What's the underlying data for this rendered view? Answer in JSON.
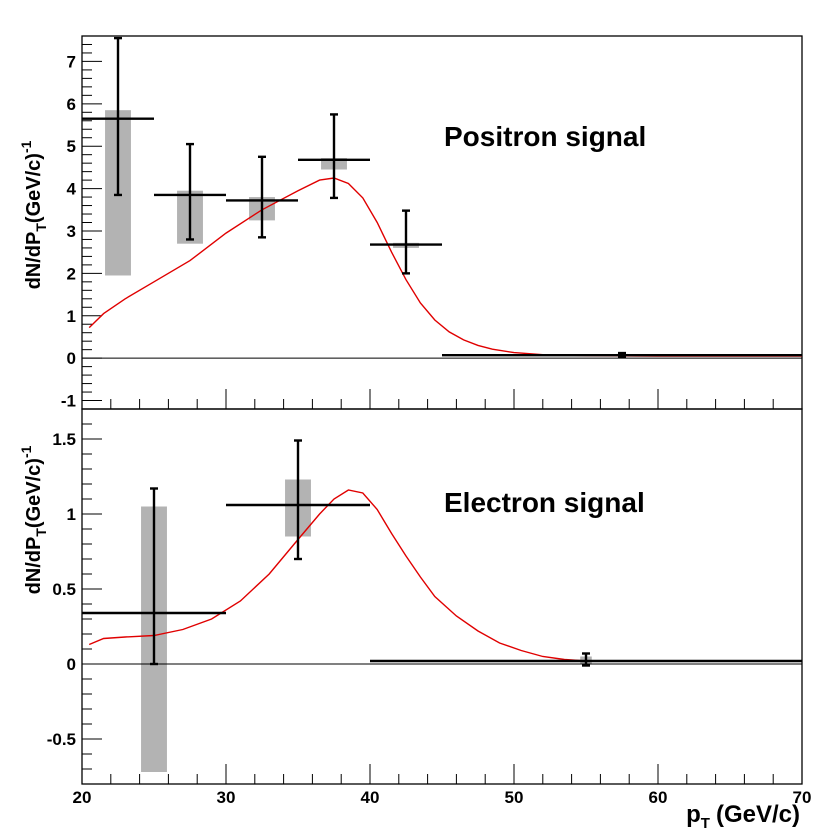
{
  "chart_data": [
    {
      "type": "scatter",
      "panel": "top",
      "title": "",
      "label": "Positron signal",
      "ylabel": {
        "main": "dN/dP",
        "sub": "T",
        "unit": "(GeV/c)",
        "sup": "-1"
      },
      "xlim": [
        20,
        70
      ],
      "ylim": [
        -1.2,
        7.6
      ],
      "yticks": [
        -1,
        0,
        1,
        2,
        3,
        4,
        5,
        6,
        7
      ],
      "points": [
        {
          "x": 22.5,
          "xlow": 20,
          "xhigh": 25,
          "y": 5.65,
          "ylow": 3.85,
          "yhigh": 7.55,
          "syslow": 1.95,
          "syshigh": 5.85
        },
        {
          "x": 27.5,
          "xlow": 25,
          "xhigh": 30,
          "y": 3.85,
          "ylow": 2.8,
          "yhigh": 5.05,
          "syslow": 2.7,
          "syshigh": 3.95
        },
        {
          "x": 32.5,
          "xlow": 30,
          "xhigh": 35,
          "y": 3.72,
          "ylow": 2.85,
          "yhigh": 4.75,
          "syslow": 3.25,
          "syshigh": 3.8
        },
        {
          "x": 37.5,
          "xlow": 35,
          "xhigh": 40,
          "y": 4.68,
          "ylow": 3.78,
          "yhigh": 5.75,
          "syslow": 4.45,
          "syshigh": 4.72
        },
        {
          "x": 42.5,
          "xlow": 40,
          "xhigh": 45,
          "y": 2.68,
          "ylow": 2.0,
          "yhigh": 3.48,
          "syslow": 2.6,
          "syshigh": 2.72
        },
        {
          "x": 57.5,
          "xlow": 45,
          "xhigh": 70,
          "y": 0.07,
          "ylow": 0.02,
          "yhigh": 0.12,
          "syslow": 0.04,
          "syshigh": 0.1
        }
      ],
      "model_curve": {
        "color": "#e00000",
        "points": [
          [
            20.5,
            0.72
          ],
          [
            21.5,
            1.05
          ],
          [
            23,
            1.4
          ],
          [
            25,
            1.8
          ],
          [
            27.5,
            2.3
          ],
          [
            30,
            2.95
          ],
          [
            32.5,
            3.5
          ],
          [
            35,
            3.95
          ],
          [
            36.5,
            4.2
          ],
          [
            37.5,
            4.25
          ],
          [
            38.5,
            4.12
          ],
          [
            39.5,
            3.78
          ],
          [
            40.5,
            3.2
          ],
          [
            41.5,
            2.5
          ],
          [
            42.5,
            1.85
          ],
          [
            43.5,
            1.3
          ],
          [
            44.5,
            0.9
          ],
          [
            45.5,
            0.62
          ],
          [
            46.5,
            0.43
          ],
          [
            47.5,
            0.3
          ],
          [
            48.5,
            0.21
          ],
          [
            50,
            0.13
          ],
          [
            52,
            0.08
          ],
          [
            55,
            0.06
          ],
          [
            60,
            0.05
          ],
          [
            70,
            0.05
          ]
        ]
      }
    },
    {
      "type": "scatter",
      "panel": "bottom",
      "title": "",
      "label": "Electron signal",
      "xlabel": {
        "main": "p",
        "sub": "T",
        "unit": "(GeV/c)"
      },
      "ylabel": {
        "main": "dN/dP",
        "sub": "T",
        "unit": "(GeV/c)",
        "sup": "-1"
      },
      "xlim": [
        20,
        70
      ],
      "ylim": [
        -0.8,
        1.7
      ],
      "xticks": [
        20,
        30,
        40,
        50,
        60,
        70
      ],
      "yticks": [
        -0.5,
        0,
        0.5,
        1,
        1.5
      ],
      "ytick_labels": [
        "-0.5",
        "0",
        "0.5",
        "1",
        "1.5"
      ],
      "points": [
        {
          "x": 25,
          "xlow": 20,
          "xhigh": 30,
          "y": 0.34,
          "ylow": 0.0,
          "yhigh": 1.17,
          "syslow": -0.72,
          "syshigh": 1.05
        },
        {
          "x": 35,
          "xlow": 30,
          "xhigh": 40,
          "y": 1.06,
          "ylow": 0.7,
          "yhigh": 1.49,
          "syslow": 0.85,
          "syshigh": 1.23
        },
        {
          "x": 55,
          "xlow": 40,
          "xhigh": 70,
          "y": 0.02,
          "ylow": -0.01,
          "yhigh": 0.07,
          "syslow": 0.0,
          "syshigh": 0.05
        }
      ],
      "model_curve": {
        "color": "#e00000",
        "points": [
          [
            20.5,
            0.13
          ],
          [
            21.5,
            0.17
          ],
          [
            23,
            0.18
          ],
          [
            25,
            0.19
          ],
          [
            27,
            0.23
          ],
          [
            29,
            0.3
          ],
          [
            31,
            0.42
          ],
          [
            33,
            0.6
          ],
          [
            35,
            0.83
          ],
          [
            36.5,
            1.0
          ],
          [
            37.5,
            1.1
          ],
          [
            38.5,
            1.16
          ],
          [
            39.5,
            1.14
          ],
          [
            40.5,
            1.03
          ],
          [
            41.5,
            0.87
          ],
          [
            42.5,
            0.72
          ],
          [
            43.5,
            0.58
          ],
          [
            44.5,
            0.45
          ],
          [
            46,
            0.32
          ],
          [
            47.5,
            0.22
          ],
          [
            49,
            0.14
          ],
          [
            50.5,
            0.09
          ],
          [
            52,
            0.05
          ],
          [
            53.5,
            0.03
          ],
          [
            55,
            0.02
          ],
          [
            60,
            0.02
          ],
          [
            70,
            0.02
          ]
        ]
      }
    }
  ],
  "colors": {
    "curve": "#e00000",
    "systematic_box": "#b3b3b3",
    "axis": "#000000",
    "zero_line": "#000000"
  }
}
